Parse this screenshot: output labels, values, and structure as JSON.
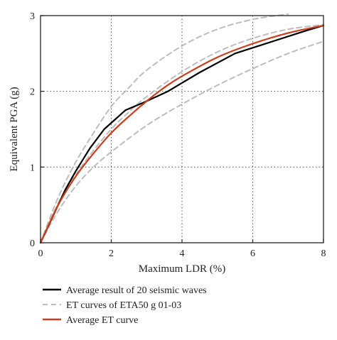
{
  "chart_data": {
    "type": "line",
    "xlabel": "Maximum LDR (%)",
    "ylabel": "Equivalent PGA (g)",
    "xlim": [
      0,
      8
    ],
    "ylim": [
      0,
      3
    ],
    "x_ticks": [
      0,
      2,
      4,
      6,
      8
    ],
    "y_ticks": [
      0,
      1,
      2,
      3
    ],
    "grid": "dotted",
    "legend_position": "bottom",
    "series": [
      {
        "name": "Average result of 20 seismic waves",
        "color": "#000000",
        "style": "solid",
        "points": [
          [
            0,
            0
          ],
          [
            0.3,
            0.3
          ],
          [
            0.7,
            0.7
          ],
          [
            1.0,
            0.95
          ],
          [
            1.4,
            1.25
          ],
          [
            1.8,
            1.5
          ],
          [
            2.4,
            1.75
          ],
          [
            2.9,
            1.85
          ],
          [
            3.6,
            2.0
          ],
          [
            4.5,
            2.25
          ],
          [
            5.5,
            2.5
          ],
          [
            6.5,
            2.65
          ],
          [
            7.5,
            2.8
          ],
          [
            8.0,
            2.87
          ]
        ]
      },
      {
        "name": "ET curves of ETA50 g 01-03",
        "color": "#bdbdbd",
        "style": "dashed",
        "points": [
          [
            0,
            0
          ],
          [
            0.5,
            0.6
          ],
          [
            1.0,
            1.07
          ],
          [
            1.5,
            1.45
          ],
          [
            2.0,
            1.8
          ],
          [
            2.5,
            2.05
          ],
          [
            3.0,
            2.28
          ],
          [
            4.0,
            2.6
          ],
          [
            5.0,
            2.82
          ],
          [
            6.0,
            2.95
          ],
          [
            7.0,
            3.02
          ]
        ]
      },
      {
        "name": "ET curves of ETA50 g 01-03",
        "color": "#bdbdbd",
        "style": "dashed",
        "show_in_legend": false,
        "points": [
          [
            0,
            0
          ],
          [
            0.5,
            0.52
          ],
          [
            1.0,
            0.9
          ],
          [
            1.5,
            1.22
          ],
          [
            2.0,
            1.5
          ],
          [
            2.5,
            1.73
          ],
          [
            3.0,
            1.93
          ],
          [
            4.0,
            2.26
          ],
          [
            5.0,
            2.52
          ],
          [
            6.0,
            2.7
          ],
          [
            7.0,
            2.82
          ],
          [
            8.0,
            2.88
          ]
        ]
      },
      {
        "name": "ET curves of ETA50 g 01-03",
        "color": "#bdbdbd",
        "style": "dashed",
        "show_in_legend": false,
        "points": [
          [
            0,
            0
          ],
          [
            0.5,
            0.42
          ],
          [
            1.0,
            0.75
          ],
          [
            1.5,
            1.0
          ],
          [
            2.0,
            1.2
          ],
          [
            3.0,
            1.55
          ],
          [
            4.0,
            1.83
          ],
          [
            5.0,
            2.08
          ],
          [
            6.0,
            2.3
          ],
          [
            7.0,
            2.5
          ],
          [
            8.0,
            2.66
          ]
        ]
      },
      {
        "name": "Average ET curve",
        "color": "#c8401e",
        "style": "solid",
        "points": [
          [
            0,
            0
          ],
          [
            0.5,
            0.5
          ],
          [
            1.0,
            0.88
          ],
          [
            1.5,
            1.18
          ],
          [
            2.0,
            1.45
          ],
          [
            2.5,
            1.67
          ],
          [
            3.0,
            1.87
          ],
          [
            3.5,
            2.05
          ],
          [
            4.0,
            2.2
          ],
          [
            5.0,
            2.45
          ],
          [
            6.0,
            2.63
          ],
          [
            7.0,
            2.77
          ],
          [
            8.0,
            2.87
          ]
        ]
      }
    ]
  }
}
